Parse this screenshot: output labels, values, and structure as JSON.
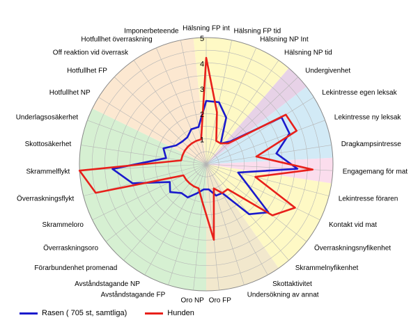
{
  "chart_data": {
    "type": "radar",
    "rmax": 5,
    "ticks": [
      1,
      2,
      3,
      4,
      5
    ],
    "axes": [
      "Hälsning FP int",
      "Hälsning FP tid",
      "Hälsning NP Int",
      "Hälsning NP tid",
      "Undergivenhet",
      "Lekintresse egen leksak",
      "Lekintresse ny leksak",
      "Dragkampsintresse",
      "Engagemang för mat",
      "Lekintresse föraren",
      "Kontakt vid mat",
      "Överraskningsnyfikenhet",
      "Skrammelnyfikenhet",
      "Skottaktivitet",
      "Undersökning av annat",
      "Oro FP",
      "Oro NP",
      "Avståndstagande FP",
      "Avståndstagande NP",
      "Förarbundenhet promenad",
      "Överraskningsoro",
      "Skrammeloro",
      "Överraskningsflykt",
      "Skrammelflykt",
      "Skottosäkerhet",
      "Underlagsosäkerhet",
      "Hotfullhet NP",
      "Hotfullhet FP",
      "Off reaktion vid överrask",
      "Hotfullhet överraskning",
      "Imponerbeteende"
    ],
    "sectors": [
      {
        "from": -0.5,
        "to": 3.5,
        "color": "#fef9c5"
      },
      {
        "from": 3.5,
        "to": 4.5,
        "color": "#e7d2e7"
      },
      {
        "from": 4.5,
        "to": 7.5,
        "color": "#d2eaf6"
      },
      {
        "from": 7.5,
        "to": 8.5,
        "color": "#fbdded"
      },
      {
        "from": 8.5,
        "to": 12.5,
        "color": "#fef9c5"
      },
      {
        "from": 12.5,
        "to": 15.5,
        "color": "#f2e8cd"
      },
      {
        "from": 15.5,
        "to": 25.5,
        "color": "#d6f0d2"
      },
      {
        "from": 25.5,
        "to": 30.5,
        "color": "#fce8d1"
      }
    ],
    "series": [
      {
        "name": "Rasen ( 705 st, samtliga)",
        "color": "#1a1acc",
        "values": [
          2.5,
          2.5,
          2.0,
          1.0,
          1.3,
          3.5,
          3.5,
          2.8,
          3.6,
          1.3,
          1.8,
          3.1,
          2.6,
          1.3,
          1.3,
          1.0,
          1.0,
          1.2,
          1.5,
          1.5,
          1.8,
          1.6,
          3.0,
          3.7,
          1.6,
          1.8,
          1.4,
          1.3,
          1.3,
          1.5,
          1.5
        ]
      },
      {
        "name": "Hunden",
        "color": "#e8201a",
        "values": [
          4.2,
          2.1,
          1.0,
          1.0,
          1.2,
          3.7,
          3.8,
          2.0,
          4.2,
          2.0,
          3.9,
          3.3,
          1.3,
          1.3,
          1.0,
          3.0,
          1.5,
          1.0,
          1.0,
          1.0,
          1.0,
          1.0,
          4.5,
          5.0,
          1.0,
          1.0,
          1.0,
          1.0,
          1.0,
          1.0,
          1.0
        ]
      }
    ]
  }
}
